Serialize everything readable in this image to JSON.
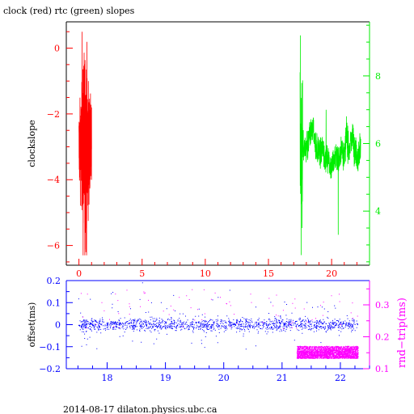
{
  "title": "clock (red) rtc (green) slopes",
  "footer": "2014-08-17  dilaton.physics.ubc.ca",
  "colors": {
    "axis": "#000000",
    "clock": "#ff0000",
    "rtc": "#00ee00",
    "offset": "#0000ff",
    "rndtrip": "#ff00ff"
  },
  "chart_data": [
    {
      "type": "line",
      "xlim": [
        -1.0,
        23.0
      ],
      "ylim": [
        -6.6,
        0.8
      ],
      "y2lim": [
        2.4,
        9.6
      ],
      "x_ticks": [
        0,
        5,
        10,
        15,
        20
      ],
      "x_tick_labels": [
        "0",
        "5",
        "10",
        "15",
        "20"
      ],
      "y_ticks": [
        0,
        -2,
        -4,
        -6
      ],
      "y_tick_labels": [
        "0",
        "−2",
        "−4",
        "−6"
      ],
      "y2_ticks": [
        4,
        6,
        8
      ],
      "y2_tick_labels": [
        "4",
        "6",
        "8"
      ],
      "ylabel": "clockslope",
      "series": [
        {
          "name": "clock",
          "axis": "left",
          "x_range": [
            0.0,
            1.0
          ],
          "y_range": [
            -6.3,
            0.5
          ],
          "typical": -3.0
        },
        {
          "name": "rtc",
          "axis": "right",
          "x_range": [
            17.5,
            22.3
          ],
          "y_range": [
            2.7,
            9.2
          ],
          "typical": 5.8
        }
      ]
    },
    {
      "type": "scatter",
      "xlim": [
        17.3,
        22.5
      ],
      "ylim": [
        -0.2,
        0.2
      ],
      "y2lim": [
        0.1,
        0.35
      ],
      "x_ticks": [
        18,
        19,
        20,
        21,
        22
      ],
      "x_tick_labels": [
        "18",
        "19",
        "20",
        "21",
        "22"
      ],
      "y_ticks": [
        0.2,
        0.1,
        0,
        -0.1,
        -0.2
      ],
      "y_tick_labels": [
        "0.2",
        "0.1",
        "0",
        "−0.1",
        "−0.2"
      ],
      "y2_ticks": [
        0.1,
        0.2,
        0.3
      ],
      "y2_tick_labels": [
        "0.1",
        "0.2",
        "0.3"
      ],
      "ylabel": "offset(ms)",
      "y2label": "rnd−trip(ms)",
      "series": [
        {
          "name": "offset",
          "axis": "left",
          "x_range": [
            17.5,
            22.3
          ],
          "center": 0.0,
          "spread": 0.05
        },
        {
          "name": "rnd-trip",
          "axis": "right",
          "x_range": [
            21.25,
            22.3
          ],
          "y_range": [
            0.13,
            0.21
          ]
        }
      ]
    }
  ]
}
